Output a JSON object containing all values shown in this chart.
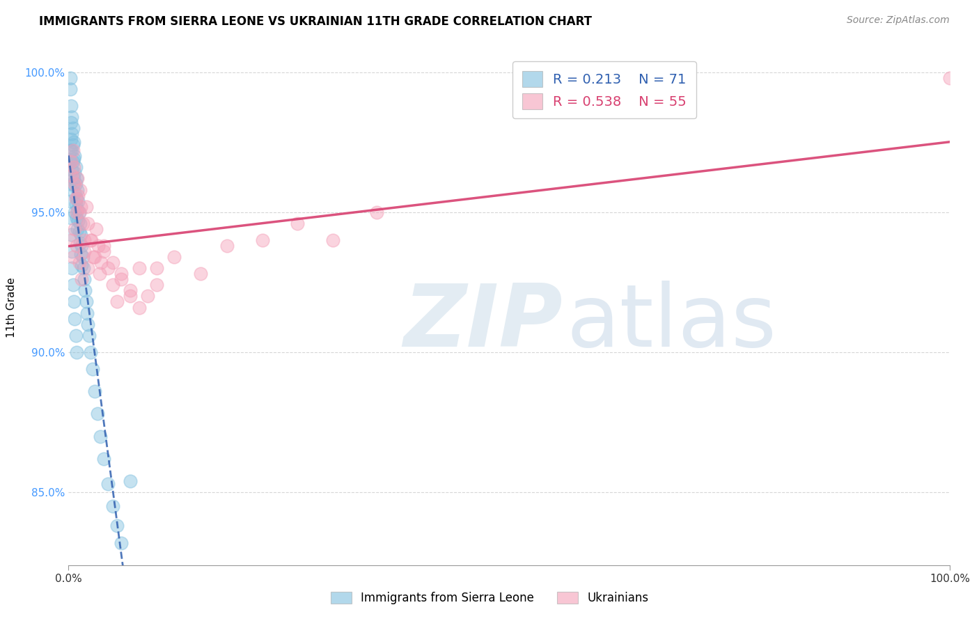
{
  "title": "IMMIGRANTS FROM SIERRA LEONE VS UKRAINIAN 11TH GRADE CORRELATION CHART",
  "source": "Source: ZipAtlas.com",
  "ylabel": "11th Grade",
  "xlim": [
    0.0,
    1.0
  ],
  "ylim": [
    0.824,
    1.008
  ],
  "legend_blue_r": "R = 0.213",
  "legend_blue_n": "N = 71",
  "legend_pink_r": "R = 0.538",
  "legend_pink_n": "N = 55",
  "blue_color": "#7fbfdf",
  "pink_color": "#f4a0b8",
  "blue_line_color": "#3060b0",
  "pink_line_color": "#d84070",
  "ytick_vals": [
    0.85,
    0.9,
    0.95,
    1.0
  ],
  "ytick_labels": [
    "85.0%",
    "90.0%",
    "95.0%",
    "100.0%"
  ],
  "xtick_vals": [
    0.0,
    1.0
  ],
  "xtick_labels": [
    "0.0%",
    "100.0%"
  ],
  "legend_items_bottom": [
    "Immigrants from Sierra Leone",
    "Ukrainians"
  ],
  "sl_x": [
    0.002,
    0.002,
    0.002,
    0.003,
    0.003,
    0.003,
    0.003,
    0.004,
    0.004,
    0.004,
    0.004,
    0.005,
    0.005,
    0.005,
    0.005,
    0.006,
    0.006,
    0.006,
    0.007,
    0.007,
    0.007,
    0.007,
    0.008,
    0.008,
    0.008,
    0.009,
    0.009,
    0.009,
    0.01,
    0.01,
    0.01,
    0.011,
    0.011,
    0.012,
    0.012,
    0.013,
    0.013,
    0.014,
    0.014,
    0.015,
    0.015,
    0.016,
    0.017,
    0.018,
    0.019,
    0.02,
    0.021,
    0.022,
    0.023,
    0.025,
    0.027,
    0.03,
    0.033,
    0.036,
    0.04,
    0.045,
    0.05,
    0.055,
    0.06,
    0.07,
    0.002,
    0.002,
    0.003,
    0.003,
    0.004,
    0.004,
    0.005,
    0.006,
    0.007,
    0.008,
    0.009
  ],
  "sl_y": [
    0.998,
    0.994,
    0.972,
    0.988,
    0.982,
    0.976,
    0.968,
    0.984,
    0.978,
    0.972,
    0.965,
    0.98,
    0.974,
    0.968,
    0.96,
    0.975,
    0.969,
    0.962,
    0.97,
    0.964,
    0.957,
    0.95,
    0.966,
    0.96,
    0.953,
    0.962,
    0.955,
    0.948,
    0.958,
    0.951,
    0.944,
    0.954,
    0.947,
    0.95,
    0.943,
    0.946,
    0.939,
    0.942,
    0.935,
    0.938,
    0.931,
    0.934,
    0.93,
    0.926,
    0.922,
    0.918,
    0.914,
    0.91,
    0.906,
    0.9,
    0.894,
    0.886,
    0.878,
    0.87,
    0.862,
    0.853,
    0.845,
    0.838,
    0.832,
    0.854,
    0.96,
    0.954,
    0.948,
    0.942,
    0.936,
    0.93,
    0.924,
    0.918,
    0.912,
    0.906,
    0.9
  ],
  "ukr_x": [
    0.003,
    0.004,
    0.005,
    0.006,
    0.007,
    0.008,
    0.009,
    0.01,
    0.011,
    0.012,
    0.013,
    0.014,
    0.016,
    0.018,
    0.02,
    0.022,
    0.025,
    0.028,
    0.031,
    0.034,
    0.037,
    0.04,
    0.045,
    0.05,
    0.055,
    0.06,
    0.07,
    0.08,
    0.09,
    0.1,
    0.003,
    0.005,
    0.007,
    0.009,
    0.012,
    0.015,
    0.018,
    0.022,
    0.026,
    0.03,
    0.035,
    0.04,
    0.05,
    0.06,
    0.07,
    0.08,
    0.1,
    0.12,
    0.15,
    0.18,
    0.22,
    0.26,
    0.3,
    0.35,
    1.0
  ],
  "ukr_y": [
    0.968,
    0.963,
    0.972,
    0.966,
    0.96,
    0.955,
    0.95,
    0.962,
    0.956,
    0.95,
    0.958,
    0.952,
    0.946,
    0.94,
    0.952,
    0.946,
    0.94,
    0.934,
    0.944,
    0.938,
    0.932,
    0.936,
    0.93,
    0.924,
    0.918,
    0.928,
    0.922,
    0.916,
    0.92,
    0.93,
    0.94,
    0.934,
    0.944,
    0.938,
    0.932,
    0.926,
    0.936,
    0.93,
    0.94,
    0.934,
    0.928,
    0.938,
    0.932,
    0.926,
    0.92,
    0.93,
    0.924,
    0.934,
    0.928,
    0.938,
    0.94,
    0.946,
    0.94,
    0.95,
    0.998
  ]
}
